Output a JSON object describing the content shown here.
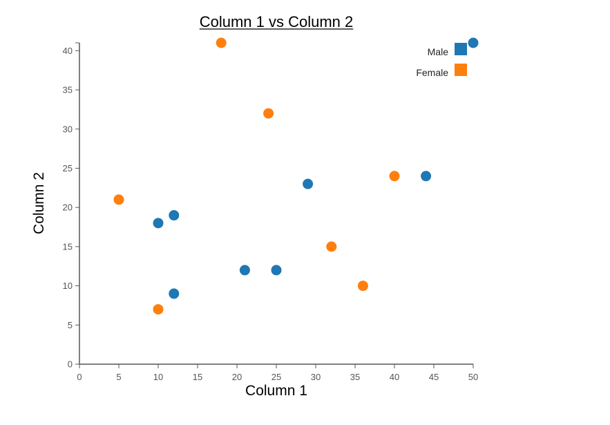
{
  "chart_data": {
    "type": "scatter",
    "title": "Column 1 vs Column 2",
    "xlabel": "Column 1",
    "ylabel": "Column 2",
    "xlim": [
      0,
      50
    ],
    "ylim": [
      0,
      41
    ],
    "xticks": [
      0,
      5,
      10,
      15,
      20,
      25,
      30,
      35,
      40,
      45,
      50
    ],
    "yticks": [
      0,
      5,
      10,
      15,
      20,
      25,
      30,
      35,
      40
    ],
    "grid": false,
    "legend_position": "top-right",
    "series": [
      {
        "name": "Male",
        "color": "#1f77b4",
        "points": [
          {
            "x": 10,
            "y": 18
          },
          {
            "x": 12,
            "y": 19
          },
          {
            "x": 12,
            "y": 9
          },
          {
            "x": 21,
            "y": 12
          },
          {
            "x": 25,
            "y": 12
          },
          {
            "x": 29,
            "y": 23
          },
          {
            "x": 44,
            "y": 24
          },
          {
            "x": 50,
            "y": 41
          }
        ]
      },
      {
        "name": "Female",
        "color": "#ff7f0e",
        "points": [
          {
            "x": 5,
            "y": 21
          },
          {
            "x": 10,
            "y": 7
          },
          {
            "x": 18,
            "y": 41
          },
          {
            "x": 24,
            "y": 32
          },
          {
            "x": 32,
            "y": 15
          },
          {
            "x": 36,
            "y": 10
          },
          {
            "x": 40,
            "y": 24
          }
        ]
      }
    ]
  }
}
